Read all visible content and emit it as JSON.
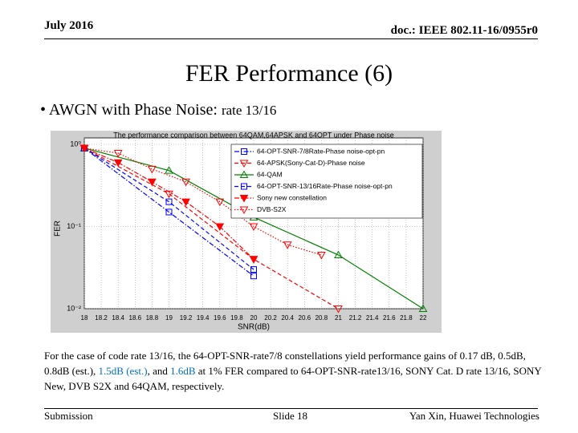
{
  "header": {
    "date": "July 2016",
    "doc": "doc.: IEEE 802.11-16/0955r0"
  },
  "title": "FER Performance (6)",
  "bullet": {
    "text": "AWGN with Phase Noise:",
    "note": "rate 13/16"
  },
  "chart_data": {
    "type": "line",
    "title": "The performance comparison between 64QAM,64APSK and 64OPT under Phase noise",
    "x_label": "SNR(dB)",
    "y_label": "FER",
    "yscale": "log",
    "grid": true,
    "legend": "upper right",
    "xlim": [
      18,
      22
    ],
    "ylim": [
      0.01,
      1
    ],
    "xticks": [
      18,
      18.2,
      18.4,
      18.6,
      18.8,
      19,
      19.2,
      19.4,
      19.6,
      19.8,
      20,
      20.2,
      20.4,
      20.6,
      20.8,
      21,
      21.2,
      21.4,
      21.6,
      21.8,
      22
    ],
    "yticks": [
      {
        "value": 1,
        "label": "10⁰"
      },
      {
        "value": 0.1,
        "label": "10⁻¹"
      },
      {
        "value": 0.01,
        "label": "10⁻²"
      }
    ],
    "series": [
      {
        "name": "64-OPT-SNR-7/8Rate-Phase noise-opt-pn",
        "color": "#0000ff",
        "marker": "square",
        "line_style": "dashdot",
        "x": [
          18,
          19,
          20
        ],
        "values": [
          0.9,
          0.15,
          0.025
        ]
      },
      {
        "name": "64-APSK(Sony-Cat-D)-Phase noise",
        "color": "#ff0000",
        "marker": "triangle-down",
        "line_style": "dashed",
        "x": [
          18,
          19,
          20,
          21
        ],
        "values": [
          0.9,
          0.25,
          0.04,
          0.01
        ]
      },
      {
        "name": "64-QAM",
        "color": "#008000",
        "marker": "triangle-up",
        "line_style": "solid",
        "x": [
          18,
          19,
          20,
          21,
          22
        ],
        "values": [
          0.9,
          0.48,
          0.13,
          0.045,
          0.01
        ]
      },
      {
        "name": "64-OPT-SNR-13/16Rate-Phase noise-opt-pn",
        "color": "#0000ff",
        "marker": "square",
        "line_style": "dashed",
        "x": [
          18,
          19,
          20
        ],
        "values": [
          0.9,
          0.2,
          0.03
        ]
      },
      {
        "name": "Sony new constellation",
        "color": "#ff0000",
        "marker": "triangle-down-filled",
        "line_style": "dashdot",
        "x": [
          18,
          18.4,
          18.8,
          19.2,
          19.6,
          20
        ],
        "values": [
          0.9,
          0.6,
          0.35,
          0.2,
          0.1,
          0.04
        ]
      },
      {
        "name": "DVB-S2X",
        "color": "#ff0000",
        "marker": "triangle-down",
        "line_style": "dotted",
        "x": [
          18,
          18.4,
          18.8,
          19.2,
          19.6,
          20,
          20.4,
          20.8
        ],
        "values": [
          0.9,
          0.78,
          0.5,
          0.35,
          0.2,
          0.1,
          0.06,
          0.045
        ]
      }
    ]
  },
  "paragraph": [
    {
      "text": "For the case of code rate 13/16, the 64-OPT-SNR-rate7/8 constellations yield performance gains of 0.17 dB, 0.5dB, 0.8dB (est.), ",
      "color": "#000000"
    },
    {
      "text": "1.5dB (est.)",
      "color": "#0070c0"
    },
    {
      "text": ", and ",
      "color": "#000000"
    },
    {
      "text": "1.6dB",
      "color": "#0070c0"
    },
    {
      "text": " at 1% FER compared to 64-OPT-SNR-rate13/16, SONY Cat. D rate 13/16, SONY New, DVB S2X and 64QAM, respectively.",
      "color": "#000000"
    }
  ],
  "footer": {
    "left": "Submission",
    "center": "Slide 18",
    "right": "Yan Xin, Huawei Technologies"
  }
}
